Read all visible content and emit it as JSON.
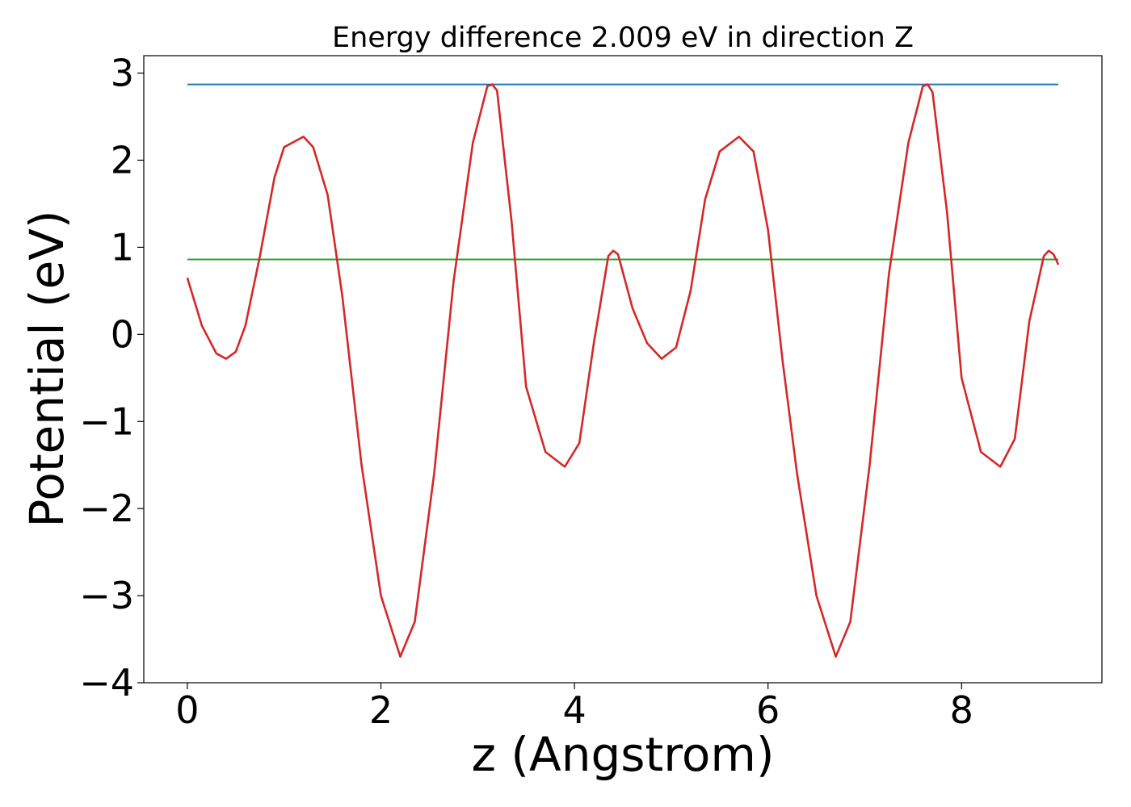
{
  "chart_data": {
    "type": "line",
    "title": "Energy difference 2.009 eV in direction Z",
    "xlabel": "z (Angstrom)",
    "ylabel": "Potential (eV)",
    "xlim": [
      -0.45,
      9.45
    ],
    "ylim": [
      -4.0,
      3.2
    ],
    "xticks": [
      0,
      2,
      4,
      6,
      8
    ],
    "xtick_labels": [
      "0",
      "2",
      "4",
      "6",
      "8"
    ],
    "yticks": [
      3,
      2,
      1,
      0,
      -1,
      -2,
      -3,
      -4
    ],
    "ytick_labels": [
      "3",
      "2",
      "1",
      "0",
      "−1",
      "−2",
      "−3",
      "−4"
    ],
    "grid": false,
    "series": [
      {
        "kind": "hline",
        "color": "#1f77b4",
        "x": [
          0,
          9
        ],
        "y": [
          2.87,
          2.87
        ]
      },
      {
        "kind": "hline",
        "color": "#2ca02c",
        "x": [
          0,
          9
        ],
        "y": [
          0.86,
          0.86
        ]
      },
      {
        "kind": "curve",
        "color": "#d62728",
        "x": [
          0.0,
          0.15,
          0.3,
          0.4,
          0.5,
          0.6,
          0.75,
          0.9,
          1.0,
          1.2,
          1.3,
          1.45,
          1.6,
          1.8,
          2.0,
          2.2,
          2.35,
          2.55,
          2.75,
          2.95,
          3.1,
          3.15,
          3.2,
          3.35,
          3.5,
          3.7,
          3.9,
          4.05,
          4.2,
          4.35,
          4.4,
          4.45,
          4.6,
          4.75,
          4.9,
          5.05,
          5.2,
          5.35,
          5.5,
          5.7,
          5.85,
          6.0,
          6.15,
          6.3,
          6.5,
          6.7,
          6.85,
          7.05,
          7.25,
          7.45,
          7.6,
          7.65,
          7.7,
          7.85,
          8.0,
          8.2,
          8.4,
          8.55,
          8.7,
          8.85,
          8.9,
          8.95,
          9.0
        ],
        "y": [
          0.65,
          0.1,
          -0.22,
          -0.28,
          -0.2,
          0.1,
          0.9,
          1.8,
          2.15,
          2.27,
          2.15,
          1.6,
          0.45,
          -1.5,
          -3.0,
          -3.7,
          -3.3,
          -1.6,
          0.6,
          2.2,
          2.85,
          2.87,
          2.8,
          1.3,
          -0.6,
          -1.35,
          -1.52,
          -1.25,
          -0.1,
          0.9,
          0.96,
          0.92,
          0.3,
          -0.1,
          -0.28,
          -0.15,
          0.5,
          1.55,
          2.1,
          2.27,
          2.1,
          1.2,
          -0.3,
          -1.6,
          -3.0,
          -3.7,
          -3.3,
          -1.5,
          0.7,
          2.2,
          2.85,
          2.87,
          2.78,
          1.4,
          -0.5,
          -1.35,
          -1.52,
          -1.2,
          0.15,
          0.9,
          0.96,
          0.92,
          0.8
        ]
      }
    ]
  }
}
